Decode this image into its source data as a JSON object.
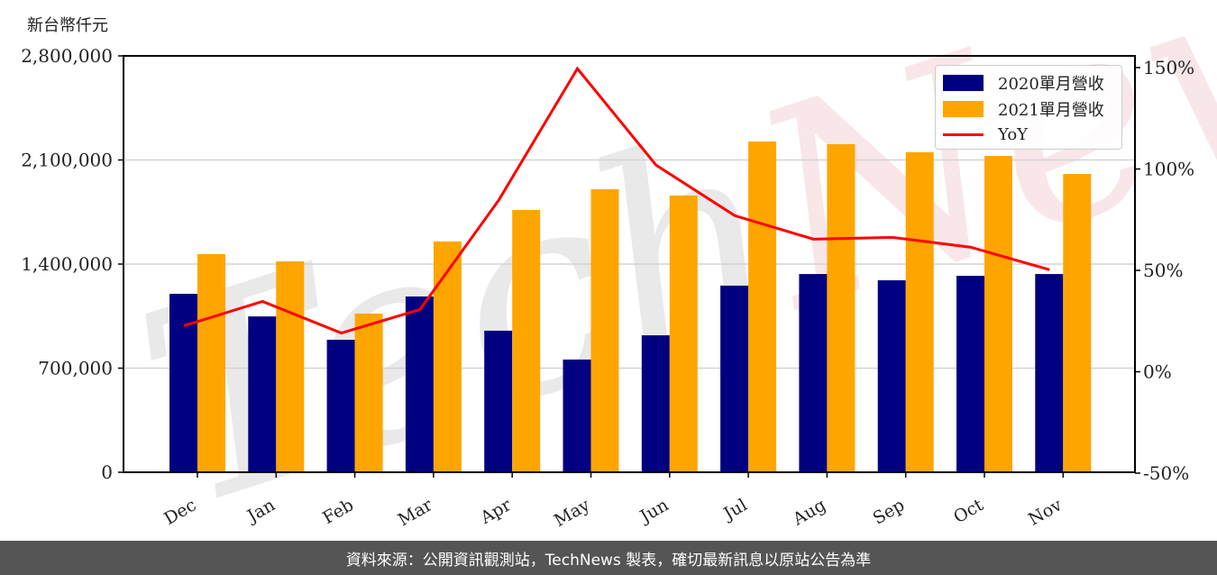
{
  "chart_data": {
    "type": "bar",
    "title": "",
    "unit_label": "新台幣仟元",
    "xlabel": "",
    "ylabel": "新台幣仟元",
    "y2label": "YoY",
    "categories": [
      "Dec",
      "Jan",
      "Feb",
      "Mar",
      "Apr",
      "May",
      "Jun",
      "Jul",
      "Aug",
      "Sep",
      "Oct",
      "Nov"
    ],
    "series": [
      {
        "name": "2020單月營收",
        "type": "bar",
        "color": "#000080",
        "axis": "left",
        "values": [
          1200000,
          1048000,
          891000,
          1182000,
          952000,
          758000,
          921000,
          1255000,
          1333000,
          1291000,
          1321000,
          1333000
        ]
      },
      {
        "name": "2021單月營收",
        "type": "bar",
        "color": "#FFA500",
        "axis": "left",
        "values": [
          1467000,
          1418000,
          1067000,
          1552000,
          1764000,
          1903000,
          1861000,
          2224000,
          2206000,
          2152000,
          2127000,
          2006000
        ]
      },
      {
        "name": "YoY",
        "type": "line",
        "color": "#FF0000",
        "axis": "right",
        "values": [
          22.7,
          34.7,
          19.1,
          30.7,
          84.6,
          149.5,
          101.9,
          77.0,
          65.4,
          66.3,
          61.4,
          50.3
        ]
      }
    ],
    "ylim": [
      0,
      2800000
    ],
    "y_ticks": [
      0,
      700000,
      1400000,
      2100000,
      2800000
    ],
    "y_tick_labels": [
      "0",
      "700,000",
      "1,400,000",
      "2,100,000",
      "2,800,000"
    ],
    "y2lim": [
      -50,
      150
    ],
    "y2_ticks": [
      -50,
      0,
      50,
      100,
      150
    ],
    "y2_tick_labels": [
      "-50%",
      "0%",
      "50%",
      "100%",
      "150%"
    ],
    "grid": true,
    "legend_position": "upper right",
    "watermark": "TechNews"
  },
  "legend": {
    "items": [
      {
        "label": "2020單月營收",
        "color": "#000080",
        "kind": "bar"
      },
      {
        "label": "2021單月營收",
        "color": "#FFA500",
        "kind": "bar"
      },
      {
        "label": "YoY",
        "color": "#FF0000",
        "kind": "line"
      }
    ]
  },
  "header": {
    "unit_label": "新台幣仟元"
  },
  "footer": {
    "text": "資料來源：公開資訊觀測站，TechNews 製表，確切最新訊息以原站公告為準"
  }
}
